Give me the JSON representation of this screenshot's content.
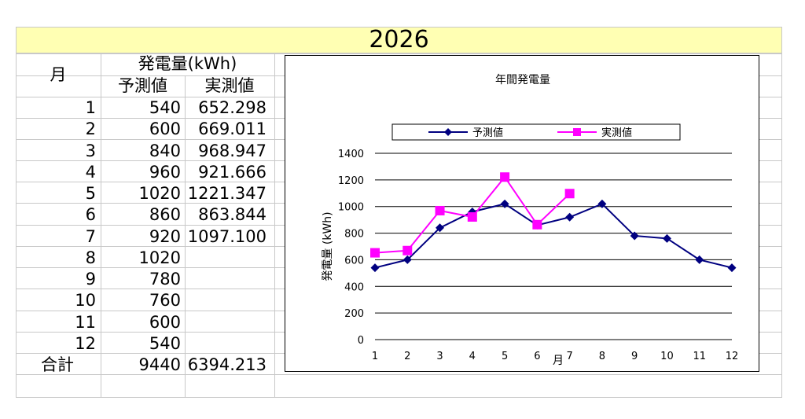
{
  "sheet": {
    "year_title": "2026",
    "header_month": "月",
    "header_generation": "発電量(kWh)",
    "header_forecast": "予測値",
    "header_actual": "実測値",
    "rows": [
      {
        "month": "1",
        "forecast": "540",
        "actual": "652.298"
      },
      {
        "month": "2",
        "forecast": "600",
        "actual": "669.011"
      },
      {
        "month": "3",
        "forecast": "840",
        "actual": "968.947"
      },
      {
        "month": "4",
        "forecast": "960",
        "actual": "921.666"
      },
      {
        "month": "5",
        "forecast": "1020",
        "actual": "1221.347"
      },
      {
        "month": "6",
        "forecast": "860",
        "actual": "863.844"
      },
      {
        "month": "7",
        "forecast": "920",
        "actual": "1097.100"
      },
      {
        "month": "8",
        "forecast": "1020",
        "actual": ""
      },
      {
        "month": "9",
        "forecast": "780",
        "actual": ""
      },
      {
        "month": "10",
        "forecast": "760",
        "actual": ""
      },
      {
        "month": "11",
        "forecast": "600",
        "actual": ""
      },
      {
        "month": "12",
        "forecast": "540",
        "actual": ""
      }
    ],
    "total_label": "合計",
    "total_forecast": "9440",
    "total_actual": "6394.213"
  },
  "chart_data": {
    "type": "line",
    "title": "年間発電量",
    "xlabel": "月",
    "ylabel": "発電量 (kWh)",
    "categories": [
      "1",
      "2",
      "3",
      "4",
      "5",
      "6",
      "7",
      "8",
      "9",
      "10",
      "11",
      "12"
    ],
    "ylim": [
      0,
      1400
    ],
    "yticks": [
      0,
      200,
      400,
      600,
      800,
      1000,
      1200,
      1400
    ],
    "grid": true,
    "legend_position": "top",
    "series": [
      {
        "name": "予測値",
        "color": "#000080",
        "marker": "diamond",
        "values": [
          540,
          600,
          840,
          960,
          1020,
          860,
          920,
          1020,
          780,
          760,
          600,
          540
        ]
      },
      {
        "name": "実測値",
        "color": "#ff00ff",
        "marker": "square",
        "values": [
          652.298,
          669.011,
          968.947,
          921.666,
          1221.347,
          863.844,
          1097.1,
          null,
          null,
          null,
          null,
          null
        ]
      }
    ]
  }
}
